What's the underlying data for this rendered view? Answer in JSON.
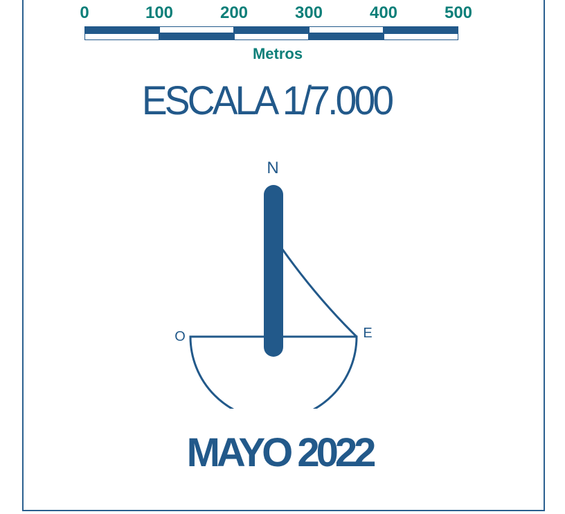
{
  "scale_bar": {
    "ticks": [
      "0",
      "100",
      "200",
      "300",
      "400",
      "500"
    ],
    "unit": "Metros"
  },
  "scale_text": "ESCALA 1/7.000",
  "compass": {
    "north_label": "N",
    "west_label": "O",
    "east_label": "E"
  },
  "date_text": "MAYO 2022",
  "colors": {
    "primary": "#22598a",
    "accent": "#0d7f79",
    "border": "#2a5f8f"
  }
}
